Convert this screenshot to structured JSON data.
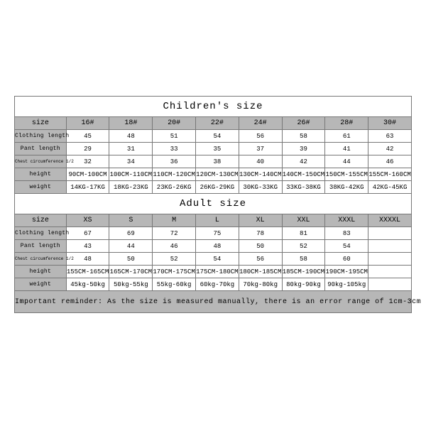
{
  "children": {
    "title": "Children's size",
    "labels": [
      "size",
      "Clothing length",
      "Pant length",
      "Chest circumference 1/2",
      "height",
      "weight"
    ],
    "sizes": [
      "16#",
      "18#",
      "20#",
      "22#",
      "24#",
      "26#",
      "28#",
      "30#"
    ],
    "clothing": [
      "45",
      "48",
      "51",
      "54",
      "56",
      "58",
      "61",
      "63"
    ],
    "pant": [
      "29",
      "31",
      "33",
      "35",
      "37",
      "39",
      "41",
      "42"
    ],
    "chest": [
      "32",
      "34",
      "36",
      "38",
      "40",
      "42",
      "44",
      "46"
    ],
    "height": [
      "90CM-100CM",
      "100CM-110CM",
      "110CM-120CM",
      "120CM-130CM",
      "130CM-140CM",
      "140CM-150CM",
      "150CM-155CM",
      "155CM-160CM"
    ],
    "weight": [
      "14KG-17KG",
      "18KG-23KG",
      "23KG-26KG",
      "26KG-29KG",
      "30KG-33KG",
      "33KG-38KG",
      "38KG-42KG",
      "42KG-45KG"
    ]
  },
  "adult": {
    "title": "Adult size",
    "labels": [
      "size",
      "Clothing length",
      "Pant length",
      "Chest circumference 1/2",
      "height",
      "weight"
    ],
    "sizes": [
      "XS",
      "S",
      "M",
      "L",
      "XL",
      "XXL",
      "XXXL",
      "XXXXL"
    ],
    "clothing": [
      "67",
      "69",
      "72",
      "75",
      "78",
      "81",
      "83",
      ""
    ],
    "pant": [
      "43",
      "44",
      "46",
      "48",
      "50",
      "52",
      "54",
      ""
    ],
    "chest": [
      "48",
      "50",
      "52",
      "54",
      "56",
      "58",
      "60",
      ""
    ],
    "height": [
      "155CM-165CM",
      "165CM-170CM",
      "170CM-175CM",
      "175CM-180CM",
      "180CM-185CM",
      "185CM-190CM",
      "190CM-195CM",
      ""
    ],
    "weight": [
      "45kg-50kg",
      "50kg-55kg",
      "55kg-60kg",
      "60kg-70kg",
      "70kg-80kg",
      "80kg-90kg",
      "90kg-105kg",
      ""
    ]
  },
  "note": "Important reminder: As the size is measured manually, there is an error range of 1cm-3cm"
}
